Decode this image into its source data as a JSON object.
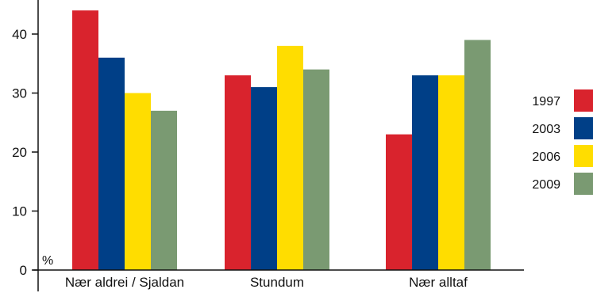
{
  "chart_data": {
    "type": "bar",
    "title": "",
    "xlabel": "",
    "ylabel": "",
    "unit_label": "%",
    "categories": [
      "Nær aldrei / Sjaldan",
      "Stundum",
      "Nær alltaf"
    ],
    "series": [
      {
        "name": "1997",
        "color": "#d9232d",
        "values": [
          44,
          33,
          23
        ]
      },
      {
        "name": "2003",
        "color": "#003f87",
        "values": [
          36,
          31,
          33
        ]
      },
      {
        "name": "2006",
        "color": "#ffdd00",
        "values": [
          30,
          38,
          33
        ]
      },
      {
        "name": "2009",
        "color": "#7a9a72",
        "values": [
          27,
          34,
          39
        ]
      }
    ],
    "ylim": [
      0,
      45
    ],
    "yticks": [
      0,
      10,
      20,
      30,
      40
    ],
    "grid": false,
    "legend_position": "right"
  }
}
